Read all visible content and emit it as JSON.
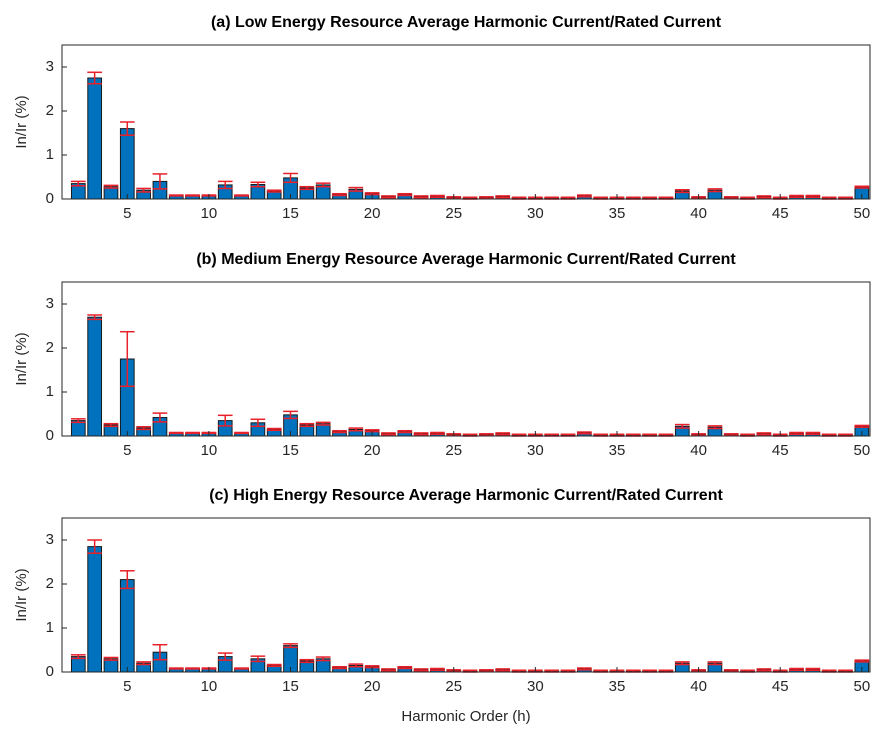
{
  "chart_data": [
    {
      "type": "bar",
      "title": "(a) Low Energy Resource Average Harmonic Current/Rated Current",
      "ylabel": "In/Ir (%)",
      "x": [
        2,
        3,
        4,
        5,
        6,
        7,
        8,
        9,
        10,
        11,
        12,
        13,
        14,
        15,
        16,
        17,
        18,
        19,
        20,
        21,
        22,
        23,
        24,
        25,
        26,
        27,
        28,
        29,
        30,
        31,
        32,
        33,
        34,
        35,
        36,
        37,
        38,
        39,
        40,
        41,
        42,
        43,
        44,
        45,
        46,
        47,
        48,
        49,
        50
      ],
      "values": [
        0.35,
        2.75,
        0.28,
        1.6,
        0.2,
        0.4,
        0.08,
        0.08,
        0.08,
        0.32,
        0.08,
        0.33,
        0.18,
        0.48,
        0.25,
        0.32,
        0.1,
        0.22,
        0.12,
        0.05,
        0.1,
        0.05,
        0.06,
        0.03,
        0.02,
        0.03,
        0.05,
        0.02,
        0.02,
        0.02,
        0.02,
        0.07,
        0.02,
        0.02,
        0.02,
        0.02,
        0.02,
        0.18,
        0.03,
        0.2,
        0.03,
        0.02,
        0.05,
        0.02,
        0.06,
        0.06,
        0.02,
        0.02,
        0.27
      ],
      "errors": [
        0.05,
        0.13,
        0.03,
        0.15,
        0.04,
        0.17,
        0.01,
        0.01,
        0.01,
        0.08,
        0.01,
        0.05,
        0.02,
        0.1,
        0.03,
        0.04,
        0.02,
        0.04,
        0.02,
        0.02,
        0.02,
        0.02,
        0.02,
        0.02,
        0.02,
        0.02,
        0.02,
        0.02,
        0.02,
        0.02,
        0.02,
        0.02,
        0.02,
        0.02,
        0.02,
        0.02,
        0.02,
        0.03,
        0.02,
        0.03,
        0.02,
        0.02,
        0.02,
        0.02,
        0.02,
        0.02,
        0.02,
        0.02,
        0.02
      ],
      "color": "#0072bd",
      "error_color": "#e8202a",
      "xlim": [
        1,
        50.5
      ],
      "xticks": [
        5,
        10,
        15,
        20,
        25,
        30,
        35,
        40,
        45,
        50
      ],
      "ylim": [
        0,
        3.5
      ],
      "yticks": [
        0,
        1,
        2,
        3
      ]
    },
    {
      "type": "bar",
      "title": "(b) Medium Energy Resource Average Harmonic Current/Rated Current",
      "ylabel": "In/Ir (%)",
      "x": [
        2,
        3,
        4,
        5,
        6,
        7,
        8,
        9,
        10,
        11,
        12,
        13,
        14,
        15,
        16,
        17,
        18,
        19,
        20,
        21,
        22,
        23,
        24,
        25,
        26,
        27,
        28,
        29,
        30,
        31,
        32,
        33,
        34,
        35,
        36,
        37,
        38,
        39,
        40,
        41,
        42,
        43,
        44,
        45,
        46,
        47,
        48,
        49,
        50
      ],
      "values": [
        0.35,
        2.7,
        0.25,
        1.75,
        0.18,
        0.42,
        0.07,
        0.07,
        0.07,
        0.35,
        0.07,
        0.3,
        0.15,
        0.48,
        0.25,
        0.28,
        0.1,
        0.15,
        0.12,
        0.05,
        0.1,
        0.05,
        0.06,
        0.03,
        0.02,
        0.03,
        0.05,
        0.02,
        0.02,
        0.02,
        0.02,
        0.07,
        0.02,
        0.02,
        0.02,
        0.02,
        0.02,
        0.22,
        0.03,
        0.2,
        0.03,
        0.02,
        0.05,
        0.02,
        0.06,
        0.06,
        0.02,
        0.02,
        0.22
      ],
      "errors": [
        0.04,
        0.05,
        0.03,
        0.62,
        0.03,
        0.1,
        0.01,
        0.01,
        0.01,
        0.12,
        0.01,
        0.08,
        0.02,
        0.08,
        0.03,
        0.03,
        0.02,
        0.03,
        0.02,
        0.02,
        0.02,
        0.02,
        0.02,
        0.02,
        0.02,
        0.02,
        0.02,
        0.02,
        0.02,
        0.02,
        0.02,
        0.02,
        0.02,
        0.02,
        0.02,
        0.02,
        0.02,
        0.04,
        0.02,
        0.03,
        0.02,
        0.02,
        0.02,
        0.02,
        0.02,
        0.02,
        0.02,
        0.02,
        0.02
      ],
      "color": "#0072bd",
      "error_color": "#e8202a",
      "xlim": [
        1,
        50.5
      ],
      "xticks": [
        5,
        10,
        15,
        20,
        25,
        30,
        35,
        40,
        45,
        50
      ],
      "ylim": [
        0,
        3.5
      ],
      "yticks": [
        0,
        1,
        2,
        3
      ]
    },
    {
      "type": "bar",
      "title": "(c) High Energy Resource Average Harmonic Current/Rated Current",
      "ylabel": "In/Ir (%)",
      "xlabel": "Harmonic Order (h)",
      "x": [
        2,
        3,
        4,
        5,
        6,
        7,
        8,
        9,
        10,
        11,
        12,
        13,
        14,
        15,
        16,
        17,
        18,
        19,
        20,
        21,
        22,
        23,
        24,
        25,
        26,
        27,
        28,
        29,
        30,
        31,
        32,
        33,
        34,
        35,
        36,
        37,
        38,
        39,
        40,
        41,
        42,
        43,
        44,
        45,
        46,
        47,
        48,
        49,
        50
      ],
      "values": [
        0.35,
        2.85,
        0.3,
        2.1,
        0.2,
        0.45,
        0.08,
        0.08,
        0.08,
        0.35,
        0.08,
        0.3,
        0.15,
        0.6,
        0.25,
        0.3,
        0.1,
        0.15,
        0.12,
        0.05,
        0.1,
        0.05,
        0.06,
        0.03,
        0.02,
        0.03,
        0.05,
        0.02,
        0.02,
        0.02,
        0.02,
        0.07,
        0.02,
        0.02,
        0.02,
        0.02,
        0.02,
        0.2,
        0.03,
        0.2,
        0.03,
        0.02,
        0.05,
        0.02,
        0.06,
        0.06,
        0.02,
        0.02,
        0.25
      ],
      "errors": [
        0.04,
        0.15,
        0.03,
        0.2,
        0.03,
        0.17,
        0.01,
        0.01,
        0.01,
        0.08,
        0.01,
        0.06,
        0.02,
        0.04,
        0.03,
        0.04,
        0.02,
        0.03,
        0.02,
        0.02,
        0.02,
        0.02,
        0.02,
        0.02,
        0.02,
        0.02,
        0.02,
        0.02,
        0.02,
        0.02,
        0.02,
        0.02,
        0.02,
        0.02,
        0.02,
        0.02,
        0.02,
        0.03,
        0.02,
        0.03,
        0.02,
        0.02,
        0.02,
        0.02,
        0.02,
        0.02,
        0.02,
        0.02,
        0.02
      ],
      "color": "#0072bd",
      "error_color": "#e8202a",
      "xlim": [
        1,
        50.5
      ],
      "xticks": [
        5,
        10,
        15,
        20,
        25,
        30,
        35,
        40,
        45,
        50
      ],
      "ylim": [
        0,
        3.5
      ],
      "yticks": [
        0,
        1,
        2,
        3
      ]
    }
  ]
}
